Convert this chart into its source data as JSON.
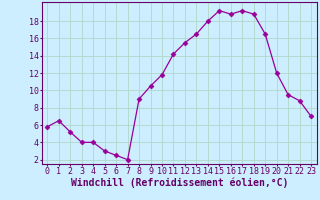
{
  "x": [
    0,
    1,
    2,
    3,
    4,
    5,
    6,
    7,
    8,
    9,
    10,
    11,
    12,
    13,
    14,
    15,
    16,
    17,
    18,
    19,
    20,
    21,
    22,
    23
  ],
  "y": [
    5.8,
    6.5,
    5.2,
    4.0,
    4.0,
    3.0,
    2.5,
    2.0,
    9.0,
    10.5,
    11.8,
    14.2,
    15.5,
    16.5,
    18.0,
    19.2,
    18.8,
    19.2,
    18.8,
    16.5,
    12.0,
    9.5,
    8.8,
    7.0
  ],
  "line_color": "#990099",
  "marker": "D",
  "marker_size": 2.5,
  "bg_color": "#cceeff",
  "grid_color": "#b0d8c8",
  "xlabel": "Windchill (Refroidissement éolien,°C)",
  "xlabel_color": "#660066",
  "xlabel_fontsize": 7,
  "ylabel_ticks": [
    2,
    4,
    6,
    8,
    10,
    12,
    14,
    16,
    18
  ],
  "xtick_labels": [
    "0",
    "1",
    "2",
    "3",
    "4",
    "5",
    "6",
    "7",
    "8",
    "9",
    "10",
    "11",
    "12",
    "13",
    "14",
    "15",
    "16",
    "17",
    "18",
    "19",
    "20",
    "21",
    "22",
    "23"
  ],
  "ylim": [
    1.5,
    20.2
  ],
  "xlim": [
    -0.5,
    23.5
  ],
  "tick_color": "#660066",
  "tick_fontsize": 6,
  "spine_color": "#660066"
}
